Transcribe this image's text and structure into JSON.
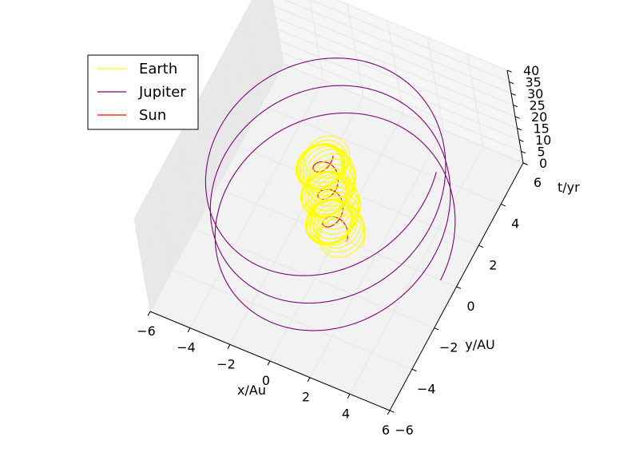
{
  "chart_data": {
    "type": "line",
    "projection": "3d",
    "title": "",
    "xlabel": "x/Au",
    "ylabel": "y/AU",
    "zlabel": "t/yr",
    "xlim": [
      -6,
      6
    ],
    "ylim": [
      -6,
      6
    ],
    "zlim": [
      0,
      40
    ],
    "x_ticks": [
      -6,
      -4,
      -2,
      0,
      2,
      4,
      6
    ],
    "y_ticks": [
      -6,
      -4,
      -2,
      0,
      2,
      4,
      6
    ],
    "z_ticks": [
      0,
      5,
      10,
      15,
      20,
      25,
      30,
      35,
      40
    ],
    "grid": true,
    "legend_position": "upper-left",
    "series": [
      {
        "name": "Earth",
        "color": "#ffff00",
        "model": "earth",
        "orbit_radius_au": 1.0,
        "period_yr": 1.0,
        "t_range": [
          0,
          36
        ]
      },
      {
        "name": "Jupiter",
        "color": "#800080",
        "model": "circular",
        "orbit_radius_au": 5.2,
        "period_yr": 11.86,
        "t_range": [
          0,
          36
        ]
      },
      {
        "name": "Sun",
        "color": "#ff0000",
        "model": "circular",
        "orbit_radius_au": 0.5,
        "period_yr": 11.86,
        "t_range": [
          0,
          36
        ]
      }
    ]
  }
}
